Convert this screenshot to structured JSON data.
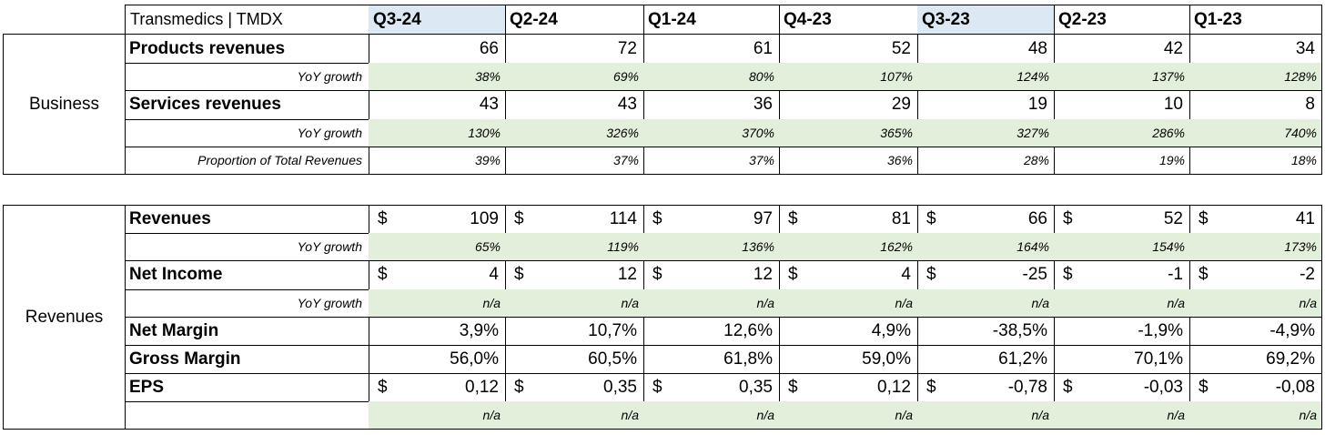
{
  "title": "Transmedics | TMDX",
  "quarters": [
    "Q3-24",
    "Q2-24",
    "Q1-24",
    "Q4-23",
    "Q3-23",
    "Q2-23",
    "Q1-23"
  ],
  "highlight_color": "#dce9f5",
  "growth_fill_color": "#e2efda",
  "sections": {
    "business": {
      "label": "Business",
      "rows": [
        {
          "label": "Products revenues",
          "style": "bold",
          "values": [
            "66",
            "72",
            "61",
            "52",
            "48",
            "42",
            "34"
          ]
        },
        {
          "label": "YoY growth",
          "style": "italic-green",
          "values": [
            "38%",
            "69%",
            "80%",
            "107%",
            "124%",
            "137%",
            "128%"
          ]
        },
        {
          "label": "Services revenues",
          "style": "bold",
          "values": [
            "43",
            "43",
            "36",
            "29",
            "19",
            "10",
            "8"
          ]
        },
        {
          "label": "YoY growth",
          "style": "italic-green",
          "values": [
            "130%",
            "326%",
            "370%",
            "365%",
            "327%",
            "286%",
            "740%"
          ]
        },
        {
          "label": "Proportion of Total Revenues",
          "style": "italic",
          "values": [
            "39%",
            "37%",
            "37%",
            "36%",
            "28%",
            "19%",
            "18%"
          ]
        }
      ]
    },
    "revenues": {
      "label": "Revenues",
      "currency_symbol": "$",
      "rows": [
        {
          "label": "Revenues",
          "style": "money",
          "values": [
            "109",
            "114",
            "97",
            "81",
            "66",
            "52",
            "41"
          ]
        },
        {
          "label": "YoY growth",
          "style": "italic-green",
          "values": [
            "65%",
            "119%",
            "136%",
            "162%",
            "164%",
            "154%",
            "173%"
          ]
        },
        {
          "label": "Net Income",
          "style": "money",
          "values": [
            "4",
            "12",
            "12",
            "4",
            "-25",
            "-1",
            "-2"
          ]
        },
        {
          "label": "YoY growth",
          "style": "italic-green",
          "values": [
            "n/a",
            "n/a",
            "n/a",
            "n/a",
            "n/a",
            "n/a",
            "n/a"
          ]
        },
        {
          "label": "Net Margin",
          "style": "bold",
          "values": [
            "3,9%",
            "10,7%",
            "12,6%",
            "4,9%",
            "-38,5%",
            "-1,9%",
            "-4,9%"
          ]
        },
        {
          "label": "Gross Margin",
          "style": "bold",
          "values": [
            "56,0%",
            "60,5%",
            "61,8%",
            "59,0%",
            "61,2%",
            "70,1%",
            "69,2%"
          ]
        },
        {
          "label": "EPS",
          "style": "money",
          "values": [
            "0,12",
            "0,35",
            "0,35",
            "0,12",
            "-0,78",
            "-0,03",
            "-0,08"
          ]
        },
        {
          "label": "",
          "style": "italic-green",
          "values": [
            "n/a",
            "n/a",
            "n/a",
            "n/a",
            "n/a",
            "n/a",
            "n/a"
          ]
        }
      ]
    }
  }
}
